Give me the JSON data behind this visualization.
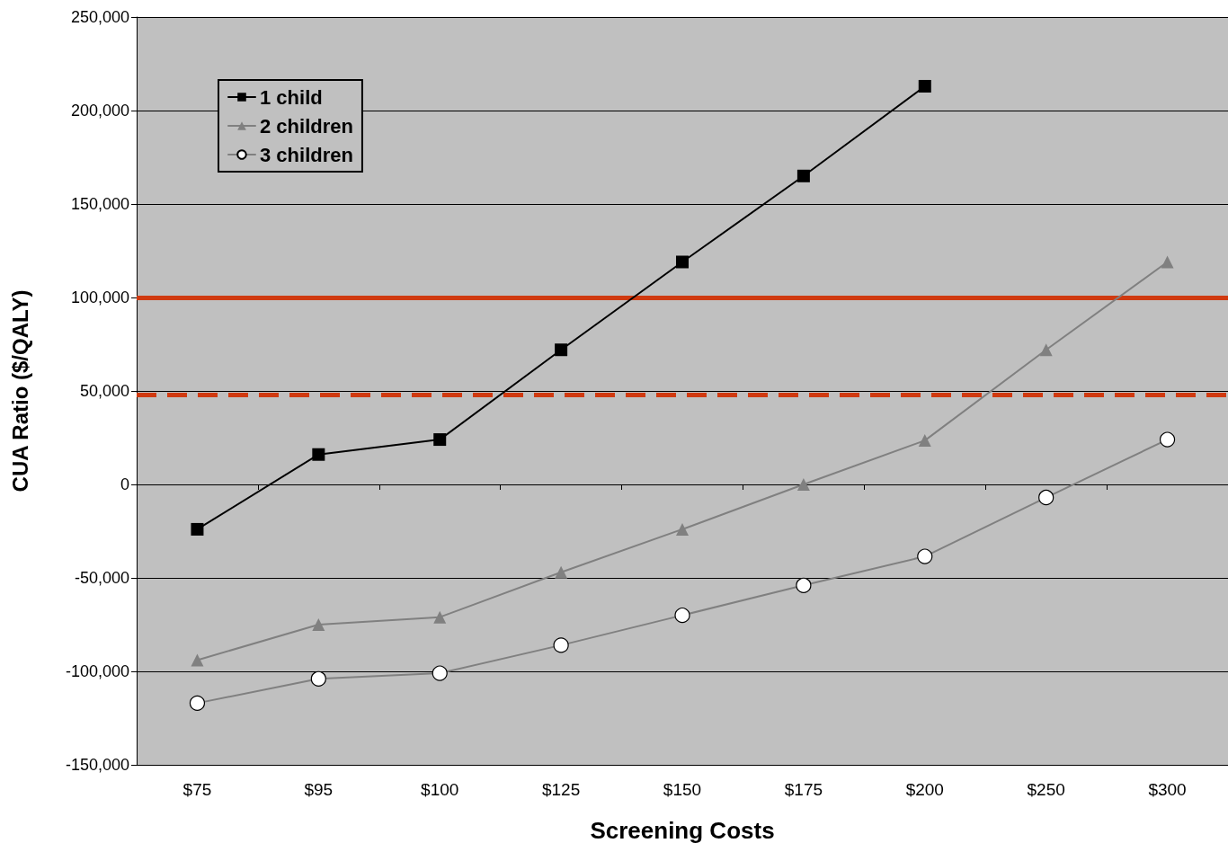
{
  "chart_data": {
    "type": "line",
    "xlabel": "Screening Costs",
    "ylabel": "CUA Ratio ($/QALY)",
    "categories": [
      "$75",
      "$95",
      "$100",
      "$125",
      "$150",
      "$175",
      "$200",
      "$250",
      "$300"
    ],
    "series": [
      {
        "name": "1 child",
        "color": "#000000",
        "marker": "square",
        "values": [
          -24000,
          16000,
          24000,
          72000,
          119000,
          165000,
          213000,
          null,
          null
        ]
      },
      {
        "name": "2 children",
        "color": "#808080",
        "marker": "triangle",
        "values": [
          -94000,
          -75000,
          -71000,
          -47000,
          -24000,
          0,
          23500,
          72000,
          119000
        ]
      },
      {
        "name": "3 children",
        "color": "#808080",
        "marker": "circle",
        "values": [
          -117000,
          -104000,
          -101000,
          -86000,
          -70000,
          -54000,
          -38500,
          -7000,
          24000
        ]
      }
    ],
    "ylim": [
      -150000,
      250000
    ],
    "yticks": [
      {
        "value": -150000,
        "label": "-150,000"
      },
      {
        "value": -100000,
        "label": "-100,000"
      },
      {
        "value": -50000,
        "label": "-50,000"
      },
      0,
      {
        "value": 50000,
        "label": "50,000"
      },
      {
        "value": 100000,
        "label": "100,000"
      },
      {
        "value": 150000,
        "label": "150,000"
      },
      {
        "value": 200000,
        "label": "200,000"
      },
      {
        "value": 250000,
        "label": "250,000"
      }
    ],
    "ref_lines": [
      {
        "axis": "y",
        "value": 100000,
        "label": null,
        "color": "#d03a10",
        "line_style": "solid"
      },
      {
        "axis": "y",
        "value": 48000,
        "label": null,
        "color": "#d03a10",
        "line_style": "dashed"
      }
    ],
    "grid": "y",
    "legend": "top left",
    "line_style": "solid"
  }
}
